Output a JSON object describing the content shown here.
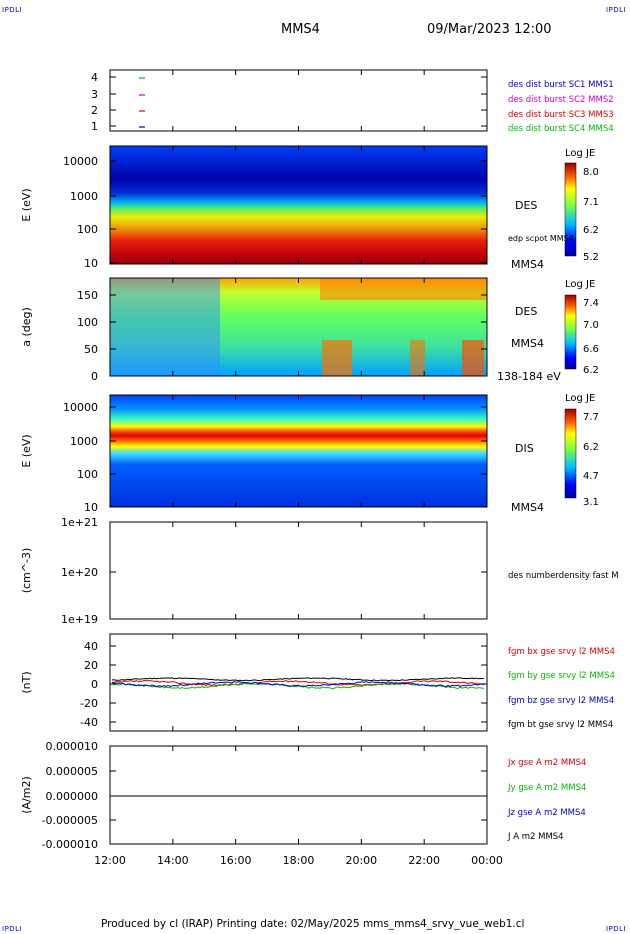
{
  "corners": {
    "tl": "IPDLI",
    "tr": "IPDLI",
    "bl": "IPDLI",
    "br": "IPDLI"
  },
  "header": {
    "spacecraft": "MMS4",
    "datetime": "09/Mar/2023 12:00"
  },
  "footer": {
    "text": "Produced by cl (IRAP)   Printing date: 02/May/2025   mms_mms4_srvy_vue_web1.cl"
  },
  "colors": {
    "blue": "#0000cc",
    "magenta": "#cc00cc",
    "red": "#dd0000",
    "green": "#00bb00",
    "black": "#000000"
  },
  "xaxis": {
    "ticks": [
      "12:00",
      "14:00",
      "16:00",
      "18:00",
      "20:00",
      "22:00",
      "00:00"
    ]
  },
  "panels": {
    "burst": {
      "yticks": [
        "4",
        "3",
        "2",
        "1"
      ],
      "legend": [
        {
          "text": "des dist burst SC1 MMS1",
          "color": "blue"
        },
        {
          "text": "des dist burst SC2 MMS2",
          "color": "magenta"
        },
        {
          "text": "des dist burst SC3 MMS3",
          "color": "red"
        },
        {
          "text": "des dist burst SC4 MMS4",
          "color": "green"
        }
      ]
    },
    "des_energy": {
      "ylabel": "E (eV)",
      "yticks": [
        "10000",
        "1000",
        "100",
        "10"
      ],
      "label": "DES",
      "sublabel": "edp scpot MMS4",
      "bottom_label": "MMS4",
      "colorbar": {
        "title": "Log JE",
        "ticks": [
          "8.0",
          "7.1",
          "6.2",
          "5.2"
        ]
      }
    },
    "des_pitch": {
      "ylabel": "a (deg)",
      "yticks": [
        "150",
        "100",
        "50",
        "0"
      ],
      "label": "DES",
      "sublabel": "MMS4",
      "bottom_label": "138-184 eV",
      "colorbar": {
        "title": "Log JE",
        "ticks": [
          "7.4",
          "7.0",
          "6.6",
          "6.2"
        ]
      }
    },
    "dis_energy": {
      "ylabel": "E (eV)",
      "yticks": [
        "10000",
        "1000",
        "100",
        "10"
      ],
      "label": "DIS",
      "bottom_label": "MMS4",
      "colorbar": {
        "title": "Log JE",
        "ticks": [
          "7.7",
          "6.2",
          "4.7",
          "3.1"
        ]
      }
    },
    "density": {
      "ylabel": "(cm^-3)",
      "yticks": [
        "1e+21",
        "1e+20",
        "1e+19"
      ],
      "legend": [
        {
          "text": "des numberdensity fast M",
          "color": "black"
        }
      ]
    },
    "fgm": {
      "ylabel": "(nT)",
      "yticks": [
        "40",
        "20",
        "0",
        "-20",
        "-40"
      ],
      "legend": [
        {
          "text": "fgm bx gse srvy l2 MMS4",
          "color": "red"
        },
        {
          "text": "fgm by gse srvy l2 MMS4",
          "color": "green"
        },
        {
          "text": "fgm bz gse srvy l2 MMS4",
          "color": "blue"
        },
        {
          "text": "fgm bt gse srvy l2 MMS4",
          "color": "black"
        }
      ]
    },
    "current": {
      "ylabel": "(A/m2)",
      "yticks": [
        "0.000010",
        "0.000005",
        "0.000000",
        "-0.000005",
        "-0.000010"
      ],
      "legend": [
        {
          "text": "Jx gse A m2 MMS4",
          "color": "red"
        },
        {
          "text": "Jy gse A m2 MMS4",
          "color": "green"
        },
        {
          "text": "Jz gse A m2 MMS4",
          "color": "blue"
        },
        {
          "text": "J A m2 MMS4",
          "color": "black"
        }
      ]
    }
  },
  "chart_data": [
    {
      "type": "scatter",
      "title": "des dist burst",
      "y": [
        1,
        4
      ],
      "ylim": [
        0.5,
        4.5
      ],
      "series": [
        {
          "name": "des dist burst SC1 MMS1",
          "x": [
            "13:00"
          ],
          "y": [
            1
          ]
        },
        {
          "name": "des dist burst SC2 MMS2",
          "x": [
            "13:00"
          ],
          "y": [
            2
          ]
        },
        {
          "name": "des dist burst SC3 MMS3",
          "x": [
            "13:00"
          ],
          "y": [
            3
          ]
        },
        {
          "name": "des dist burst SC4 MMS4",
          "x": [
            "13:00"
          ],
          "y": [
            4
          ]
        }
      ]
    },
    {
      "type": "heatmap",
      "ylabel": "E (eV)",
      "yscale": "log",
      "ylim": [
        10,
        30000
      ],
      "colorbar_range": [
        5.2,
        8.0
      ],
      "description": "electron energy spectrogram; peak flux near 20-60 eV, intermediate band 100-600 eV"
    },
    {
      "type": "heatmap",
      "ylabel": "a (deg)",
      "ylim": [
        0,
        180
      ],
      "colorbar_range": [
        6.2,
        7.4
      ],
      "description": "electron pitch angle 138-184 eV"
    },
    {
      "type": "heatmap",
      "ylabel": "E (eV)",
      "yscale": "log",
      "ylim": [
        10,
        20000
      ],
      "colorbar_range": [
        3.1,
        7.7
      ],
      "description": "ion energy spectrogram; peak band near 800-1200 eV"
    },
    {
      "type": "line",
      "ylabel": "(cm^-3)",
      "yscale": "log",
      "ylim": [
        1e+19,
        1e+21
      ],
      "series": []
    },
    {
      "type": "line",
      "ylabel": "(nT)",
      "ylim": [
        -50,
        50
      ],
      "series": [
        {
          "name": "fgm bx gse srvy l2 MMS4",
          "approx_range": [
            -3,
            5
          ]
        },
        {
          "name": "fgm by gse srvy l2 MMS4",
          "approx_range": [
            -5,
            3
          ]
        },
        {
          "name": "fgm bz gse srvy l2 MMS4",
          "approx_range": [
            -4,
            4
          ]
        },
        {
          "name": "fgm bt gse srvy l2 MMS4",
          "approx_range": [
            3,
            7
          ]
        }
      ]
    },
    {
      "type": "line",
      "ylabel": "(A/m2)",
      "ylim": [
        -1e-05,
        1e-05
      ],
      "series": [
        {
          "name": "J A m2 MMS4",
          "approx_value": 0.0
        }
      ]
    }
  ]
}
